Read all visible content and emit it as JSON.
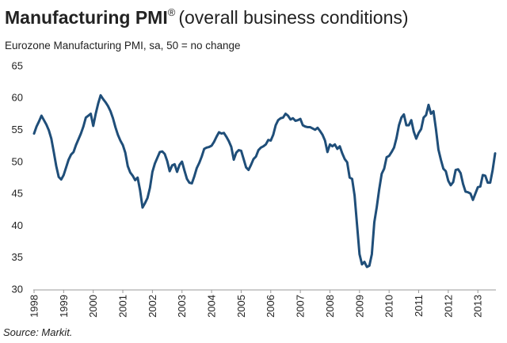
{
  "chart_data": {
    "type": "line",
    "title": "Manufacturing PMI",
    "title_superscript": "®",
    "title_suffix": "(overall business conditions)",
    "subtitle": "Eurozone Manufacturing PMI, sa, 50 = no change",
    "source": "Source: Markit.",
    "color": "#1f4e79",
    "ylim": [
      30,
      65
    ],
    "yticks": [
      30,
      35,
      40,
      45,
      50,
      55,
      60,
      65
    ],
    "grid": false,
    "categories": [
      "1998",
      null,
      null,
      null,
      null,
      null,
      null,
      null,
      null,
      null,
      null,
      null,
      "1999",
      null,
      null,
      null,
      null,
      null,
      null,
      null,
      null,
      null,
      null,
      null,
      "2000",
      null,
      null,
      null,
      null,
      null,
      null,
      null,
      null,
      null,
      null,
      null,
      "2001",
      null,
      null,
      null,
      null,
      null,
      null,
      null,
      null,
      null,
      null,
      null,
      "2002",
      null,
      null,
      null,
      null,
      null,
      null,
      null,
      null,
      null,
      null,
      null,
      "2003",
      null,
      null,
      null,
      null,
      null,
      null,
      null,
      null,
      null,
      null,
      null,
      "2004",
      null,
      null,
      null,
      null,
      null,
      null,
      null,
      null,
      null,
      null,
      null,
      "2005",
      null,
      null,
      null,
      null,
      null,
      null,
      null,
      null,
      null,
      null,
      null,
      "2006",
      null,
      null,
      null,
      null,
      null,
      null,
      null,
      null,
      null,
      null,
      null,
      "2007",
      null,
      null,
      null,
      null,
      null,
      null,
      null,
      null,
      null,
      null,
      null,
      "2008",
      null,
      null,
      null,
      null,
      null,
      null,
      null,
      null,
      null,
      null,
      null,
      "2009",
      null,
      null,
      null,
      null,
      null,
      null,
      null,
      null,
      null,
      null,
      null,
      "2010",
      null,
      null,
      null,
      null,
      null,
      null,
      null,
      null,
      null,
      null,
      null,
      "2011",
      null,
      null,
      null,
      null,
      null,
      null,
      null,
      null,
      null,
      null,
      null,
      "2012",
      null,
      null,
      null,
      null,
      null,
      null,
      null,
      null,
      null,
      null,
      null,
      "2013",
      null,
      null,
      null,
      null,
      null,
      null,
      null
    ],
    "values": [
      54.5,
      55.6,
      56.4,
      57.3,
      56.6,
      55.9,
      55.0,
      53.7,
      51.6,
      49.4,
      47.7,
      47.3,
      48.0,
      49.2,
      50.4,
      51.2,
      51.6,
      52.7,
      53.6,
      54.5,
      55.6,
      57.0,
      57.3,
      57.6,
      55.7,
      57.6,
      59.2,
      60.5,
      59.9,
      59.4,
      58.8,
      58.0,
      56.9,
      55.5,
      54.3,
      53.4,
      52.7,
      51.5,
      49.4,
      48.4,
      47.9,
      47.2,
      47.6,
      45.6,
      42.9,
      43.6,
      44.4,
      46.0,
      48.5,
      49.8,
      50.7,
      51.6,
      51.7,
      51.3,
      50.2,
      48.6,
      49.5,
      49.7,
      48.5,
      49.6,
      50.1,
      48.7,
      47.4,
      46.8,
      46.7,
      47.8,
      49.1,
      49.9,
      50.9,
      52.1,
      52.3,
      52.4,
      52.6,
      53.2,
      54.0,
      54.7,
      54.5,
      54.6,
      54.0,
      53.3,
      52.4,
      50.4,
      51.5,
      51.9,
      51.8,
      50.5,
      49.2,
      48.8,
      49.6,
      50.5,
      50.9,
      51.9,
      52.3,
      52.5,
      52.8,
      53.5,
      53.4,
      54.3,
      55.8,
      56.6,
      56.9,
      57.0,
      57.6,
      57.3,
      56.7,
      56.9,
      56.5,
      56.6,
      56.8,
      55.8,
      55.6,
      55.5,
      55.5,
      55.3,
      55.1,
      55.4,
      54.9,
      54.3,
      53.4,
      51.6,
      52.8,
      52.5,
      52.8,
      52.1,
      52.5,
      51.4,
      50.5,
      50.0,
      47.6,
      47.4,
      44.8,
      40.2,
      35.6,
      34.0,
      34.4,
      33.6,
      33.8,
      35.6,
      40.6,
      43.0,
      45.8,
      48.2,
      49.0,
      50.8,
      51.0,
      51.6,
      52.3,
      53.8,
      55.8,
      57.0,
      57.5,
      55.8,
      55.8,
      56.6,
      54.8,
      53.7,
      54.6,
      55.2,
      57.0,
      57.4,
      59.0,
      57.6,
      58.0,
      55.2,
      52.0,
      50.4,
      49.0,
      48.6,
      47.1,
      46.4,
      46.9,
      48.8,
      48.9,
      48.3,
      46.6,
      45.4,
      45.3,
      45.1,
      44.1,
      45.1,
      46.1,
      46.2,
      48.0,
      47.9,
      46.8,
      46.8,
      48.8,
      51.4
    ]
  }
}
